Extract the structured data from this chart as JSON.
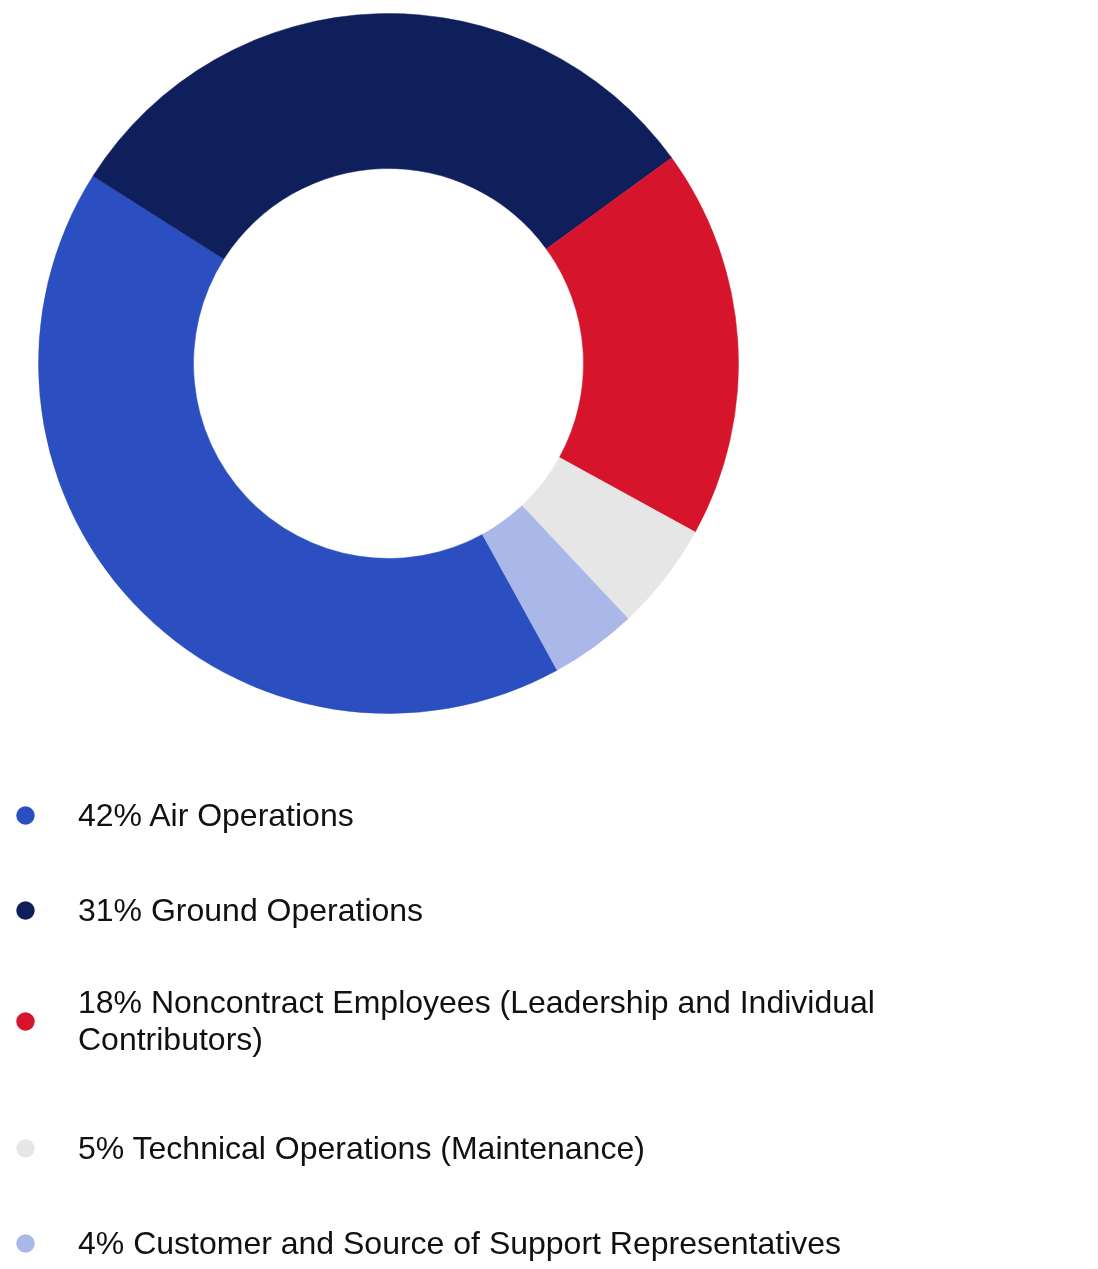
{
  "chart_data": {
    "type": "donut",
    "categories": [
      "Air Operations",
      "Ground Operations",
      "Noncontract Employees (Leadership and Individual Contributors)",
      "Technical Operations (Maintenance)",
      "Customer and Source of Support Representatives"
    ],
    "values": [
      42,
      31,
      18,
      5,
      4
    ],
    "value_labels": [
      "42%",
      "31%",
      "18%",
      "5%",
      "4%"
    ],
    "colors": [
      "#2b4fc0",
      "#0f1f5c",
      "#d6152c",
      "#e6e6e6",
      "#a9b8e8"
    ],
    "legend": "bottom"
  }
}
